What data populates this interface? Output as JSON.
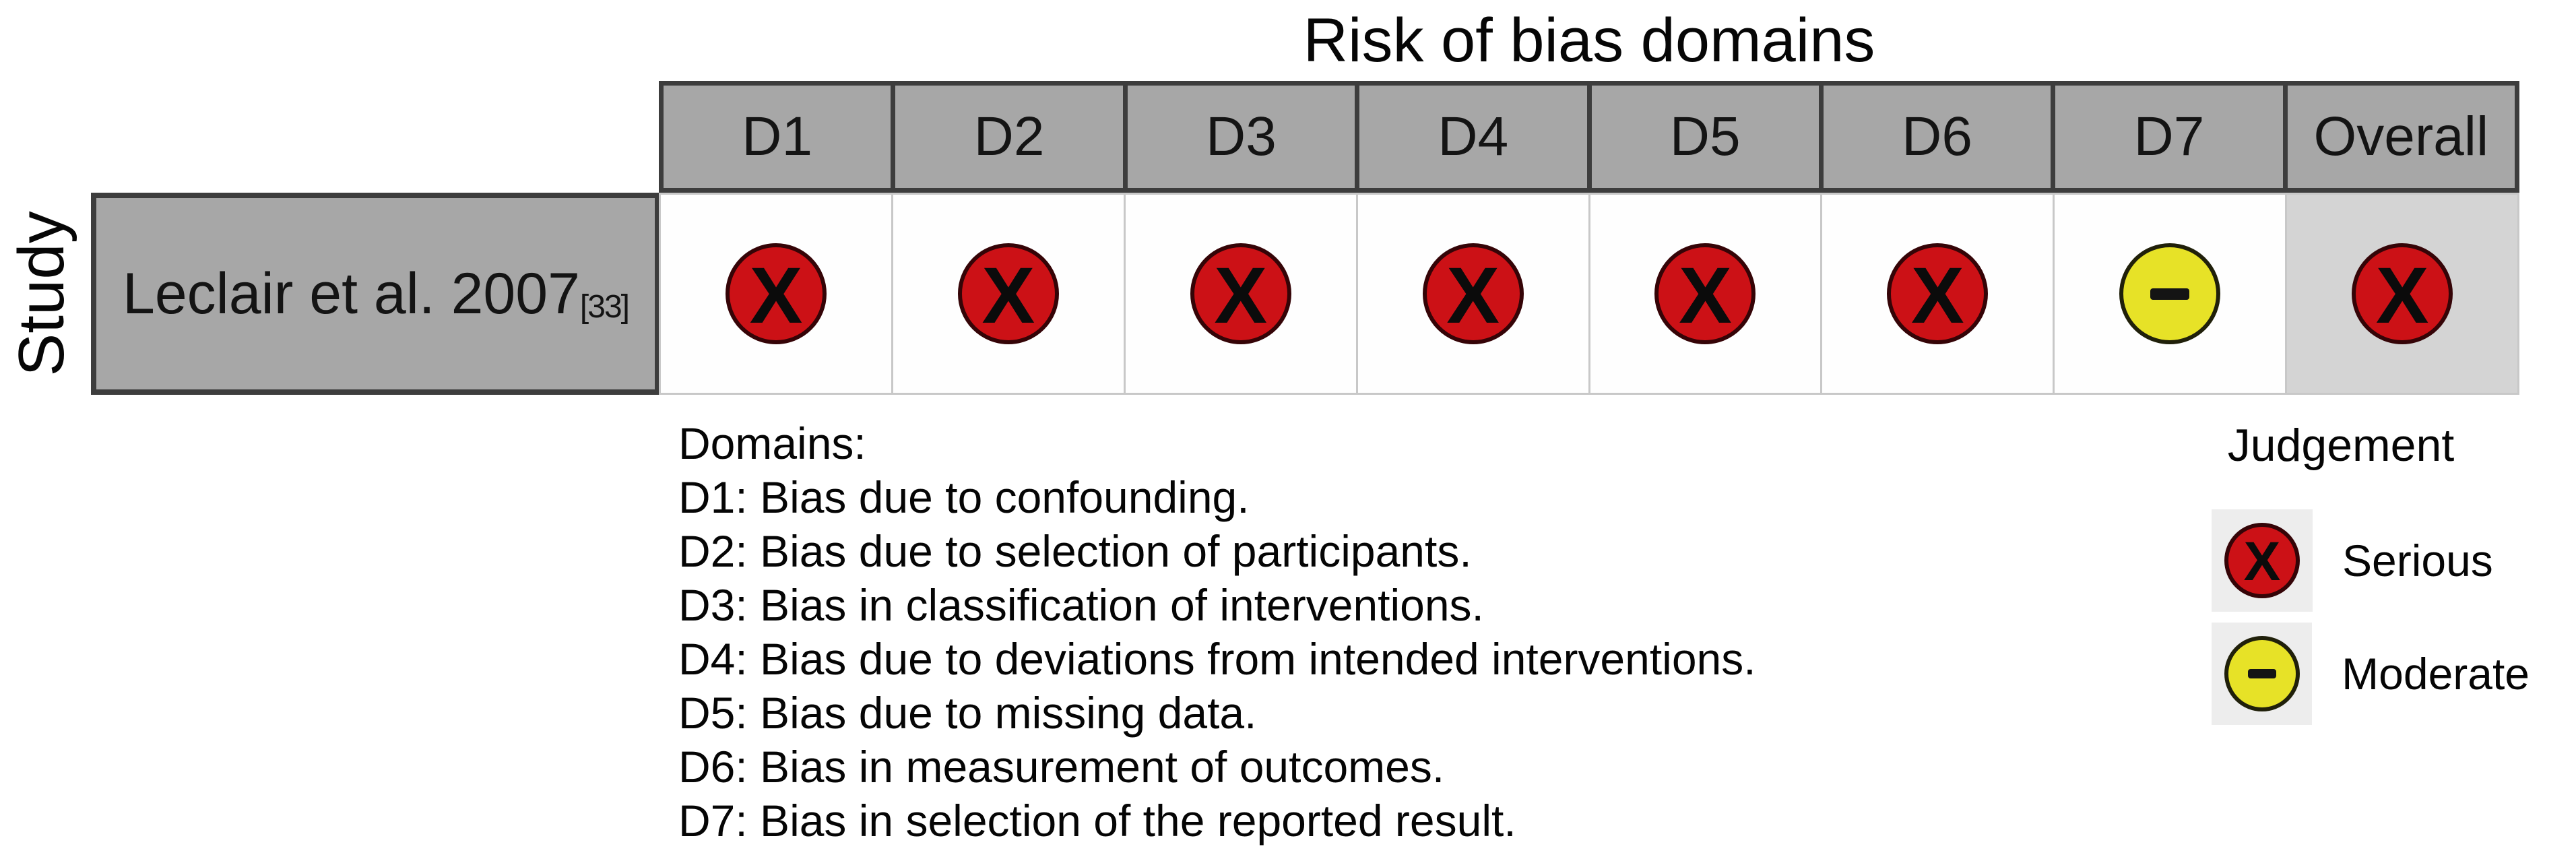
{
  "title": "Risk of bias domains",
  "axis": {
    "label": "Study"
  },
  "columns": [
    "D1",
    "D2",
    "D3",
    "D4",
    "D5",
    "D6",
    "D7",
    "Overall"
  ],
  "study": {
    "name": "Leclair et al. 2007",
    "reference": "[33]"
  },
  "row": {
    "cells": [
      {
        "domain": "D1",
        "judgement": "Serious",
        "symbol": "X"
      },
      {
        "domain": "D2",
        "judgement": "Serious",
        "symbol": "X"
      },
      {
        "domain": "D3",
        "judgement": "Serious",
        "symbol": "X"
      },
      {
        "domain": "D4",
        "judgement": "Serious",
        "symbol": "X"
      },
      {
        "domain": "D5",
        "judgement": "Serious",
        "symbol": "X"
      },
      {
        "domain": "D6",
        "judgement": "Serious",
        "symbol": "X"
      },
      {
        "domain": "D7",
        "judgement": "Moderate",
        "symbol": "-"
      },
      {
        "domain": "Overall",
        "judgement": "Serious",
        "symbol": "X"
      }
    ]
  },
  "footnote": {
    "heading": "Domains:",
    "lines": [
      "D1: Bias due to confounding.",
      "D2: Bias due to selection of participants.",
      "D3: Bias in classification of interventions.",
      "D4: Bias due to deviations from intended interventions.",
      "D5: Bias due to missing data.",
      "D6: Bias in measurement of outcomes.",
      "D7: Bias in selection of the reported result."
    ]
  },
  "legend": {
    "title": "Judgement",
    "items": [
      {
        "label": "Serious",
        "symbol": "X",
        "color": "#cc1116"
      },
      {
        "label": "Moderate",
        "symbol": "-",
        "color": "#e7e227"
      }
    ]
  },
  "colors": {
    "serious": "#cc1116",
    "moderate": "#e7e227",
    "header_fill": "#a7a7a7",
    "grid_dark": "#3d3d3d",
    "grid_light": "#c8c8c8",
    "overall_cell_fill": "#d4d4d4",
    "legend_key_fill": "#ededed"
  },
  "chart_data": {
    "type": "table",
    "title": "Risk of bias domains",
    "columns": [
      "D1",
      "D2",
      "D3",
      "D4",
      "D5",
      "D6",
      "D7",
      "Overall"
    ],
    "rows": [
      {
        "study": "Leclair et al. 2007 [33]",
        "judgements": [
          "Serious",
          "Serious",
          "Serious",
          "Serious",
          "Serious",
          "Serious",
          "Moderate",
          "Serious"
        ]
      }
    ],
    "legend": [
      {
        "judgement": "Serious",
        "symbol": "X",
        "color": "#cc1116"
      },
      {
        "judgement": "Moderate",
        "symbol": "-",
        "color": "#e7e227"
      }
    ],
    "domain_definitions": [
      "D1: Bias due to confounding.",
      "D2: Bias due to selection of participants.",
      "D3: Bias in classification of interventions.",
      "D4: Bias due to deviations from intended interventions.",
      "D5: Bias due to missing data.",
      "D6: Bias in measurement of outcomes.",
      "D7: Bias in selection of the reported result."
    ]
  }
}
